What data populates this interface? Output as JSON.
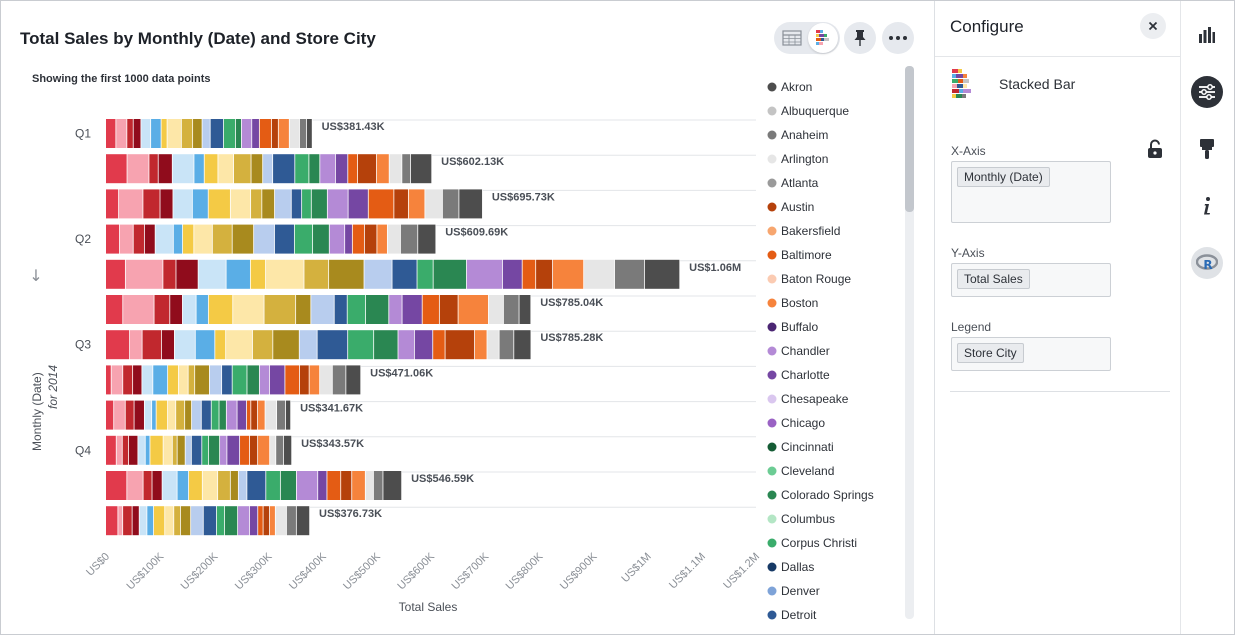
{
  "chart": {
    "title": "Total Sales by Monthly (Date) and Store City",
    "subtitle": "Showing the first 1000 data points"
  },
  "toolbar": {
    "table_view": "table-icon",
    "chart_view": "stacked-bar-icon",
    "pin": "pin-icon",
    "more": "more-icon"
  },
  "chart_data": {
    "type": "bar",
    "orientation": "horizontal",
    "stacked": true,
    "xlabel": "Total Sales",
    "ylabel": "Monthly (Date)",
    "ylabel_sub": "for 2014",
    "xlim": [
      0,
      1200000
    ],
    "x_ticks": [
      "US$0",
      "US$100K",
      "US$200K",
      "US$300K",
      "US$400K",
      "US$500K",
      "US$600K",
      "US$700K",
      "US$800K",
      "US$900K",
      "US$1M",
      "US$1.1M",
      "US$1.2M"
    ],
    "quarter_labels": [
      "Q1",
      "Q2",
      "Q3",
      "Q4"
    ],
    "legend_position": "right",
    "bars": [
      {
        "total": 381430,
        "label": "US$381.43K"
      },
      {
        "total": 602130,
        "label": "US$602.13K"
      },
      {
        "total": 695730,
        "label": "US$695.73K"
      },
      {
        "total": 609690,
        "label": "US$609.69K"
      },
      {
        "total": 1060000,
        "label": "US$1.06M"
      },
      {
        "total": 785040,
        "label": "US$785.04K"
      },
      {
        "total": 785280,
        "label": "US$785.28K"
      },
      {
        "total": 471060,
        "label": "US$471.06K"
      },
      {
        "total": 341670,
        "label": "US$341.67K"
      },
      {
        "total": 343570,
        "label": "US$343.57K"
      },
      {
        "total": 546590,
        "label": "US$546.59K"
      },
      {
        "total": 376730,
        "label": "US$376.73K"
      }
    ],
    "legend": [
      {
        "name": "Akron",
        "color": "#4d4d4d"
      },
      {
        "name": "Albuquerque",
        "color": "#c4c4c4"
      },
      {
        "name": "Anaheim",
        "color": "#7a7a7a"
      },
      {
        "name": "Arlington",
        "color": "#e6e6e6"
      },
      {
        "name": "Atlanta",
        "color": "#9a9a9a"
      },
      {
        "name": "Austin",
        "color": "#b5410b"
      },
      {
        "name": "Bakersfield",
        "color": "#f7a66f"
      },
      {
        "name": "Baltimore",
        "color": "#e45c14"
      },
      {
        "name": "Baton Rouge",
        "color": "#fbcbb2"
      },
      {
        "name": "Boston",
        "color": "#f6833c"
      },
      {
        "name": "Buffalo",
        "color": "#4b2673"
      },
      {
        "name": "Chandler",
        "color": "#b48ad6"
      },
      {
        "name": "Charlotte",
        "color": "#7547a3"
      },
      {
        "name": "Chesapeake",
        "color": "#dac7ef"
      },
      {
        "name": "Chicago",
        "color": "#9a62c4"
      },
      {
        "name": "Cincinnati",
        "color": "#155c35"
      },
      {
        "name": "Cleveland",
        "color": "#6ccc94"
      },
      {
        "name": "Colorado Springs",
        "color": "#2a8752"
      },
      {
        "name": "Columbus",
        "color": "#b4e6c5"
      },
      {
        "name": "Corpus Christi",
        "color": "#3aac6b"
      },
      {
        "name": "Dallas",
        "color": "#173a66"
      },
      {
        "name": "Denver",
        "color": "#7ea3d8"
      },
      {
        "name": "Detroit",
        "color": "#2f5a95"
      }
    ],
    "segment_palette": [
      "#e13a4c",
      "#f7a3b0",
      "#c1282e",
      "#900c1c",
      "#c9e4f7",
      "#5aaee6",
      "#f4ca45",
      "#fde7a8",
      "#d4b13e",
      "#a88a1e",
      "#b8cdee",
      "#2f5a95",
      "#3aac6b",
      "#2a8752",
      "#b48ad6",
      "#7547a3",
      "#e45c14",
      "#b5410b",
      "#f6833c",
      "#e6e6e6",
      "#7a7a7a",
      "#4d4d4d"
    ]
  },
  "configure": {
    "title": "Configure",
    "close": "close-icon",
    "chart_type": "Stacked Bar",
    "x_axis": {
      "label": "X-Axis",
      "chips": [
        "Monthly (Date)"
      ]
    },
    "y_axis": {
      "label": "Y-Axis",
      "chips": [
        "Total Sales"
      ]
    },
    "legend": {
      "label": "Legend",
      "chips": [
        "Store City"
      ]
    }
  },
  "rail": [
    {
      "icon": "bar-chart-icon",
      "active": false
    },
    {
      "icon": "configure-icon",
      "active": true
    },
    {
      "icon": "brush-icon",
      "active": false
    },
    {
      "icon": "info-icon",
      "active": false
    },
    {
      "icon": "r-icon",
      "active": false
    }
  ]
}
